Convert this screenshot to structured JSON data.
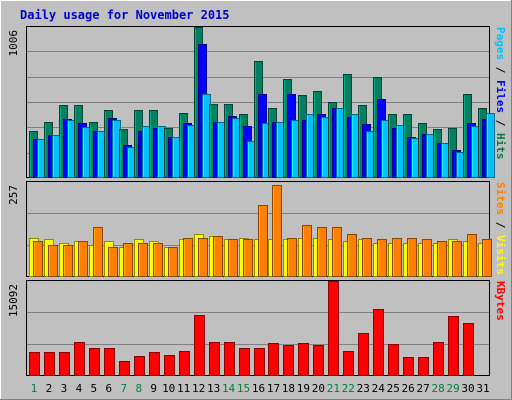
{
  "chart_data": {
    "type": "bar",
    "title": "Daily usage for November 2015",
    "categories": [
      "1",
      "2",
      "3",
      "4",
      "5",
      "6",
      "7",
      "8",
      "9",
      "10",
      "11",
      "12",
      "13",
      "14",
      "15",
      "16",
      "17",
      "18",
      "19",
      "20",
      "21",
      "22",
      "23",
      "24",
      "25",
      "26",
      "27",
      "28",
      "29",
      "30",
      "31"
    ],
    "weekend_days": [
      "1",
      "7",
      "8",
      "14",
      "15",
      "21",
      "22",
      "28",
      "29"
    ],
    "panels": [
      {
        "id": "hits-files-pages",
        "ymax": 1006,
        "ymax_label": "1006",
        "side_label": [
          {
            "text": "Pages",
            "color": "#00c0ff"
          },
          {
            "text": " / ",
            "color": "#000000"
          },
          {
            "text": "Files",
            "color": "#0000ff"
          },
          {
            "text": " / ",
            "color": "#000000"
          },
          {
            "text": "Hits",
            "color": "#008040"
          }
        ],
        "series": [
          {
            "name": "Hits",
            "color": "#008060",
            "values": [
              310,
              370,
              480,
              480,
              370,
              450,
              325,
              450,
              450,
              330,
              430,
              1006,
              490,
              490,
              420,
              780,
              460,
              660,
              550,
              580,
              500,
              690,
              480,
              670,
              420,
              420,
              360,
              320,
              330,
              560,
              460
            ]
          },
          {
            "name": "Files",
            "color": "#0000ff",
            "values": [
              255,
              280,
              390,
              365,
              310,
              395,
              215,
              310,
              330,
              270,
              360,
              890,
              370,
              410,
              340,
              560,
              370,
              555,
              380,
              420,
              460,
              400,
              355,
              520,
              330,
              270,
              290,
              230,
              180,
              360,
              390
            ]
          },
          {
            "name": "Pages",
            "color": "#00c0ff",
            "values": [
              255,
              280,
              385,
              335,
              310,
              380,
              200,
              345,
              345,
              270,
              350,
              560,
              370,
              395,
              240,
              360,
              370,
              380,
              420,
              400,
              460,
              420,
              310,
              380,
              350,
              260,
              290,
              230,
              170,
              345,
              430
            ]
          }
        ]
      },
      {
        "id": "visits-sites",
        "ymax": 257,
        "ymax_label": "257",
        "side_label": [
          {
            "text": "Sites",
            "color": "#ff8000"
          },
          {
            "text": " / ",
            "color": "#000000"
          },
          {
            "text": "Visits",
            "color": "#ffff00"
          }
        ],
        "series": [
          {
            "name": "Visits",
            "color": "#ffff00",
            "values": [
              105,
              100,
              90,
              95,
              85,
              95,
              80,
              100,
              95,
              80,
              100,
              115,
              110,
              100,
              105,
              100,
              100,
              100,
              105,
              105,
              100,
              95,
              100,
              90,
              90,
              90,
              90,
              90,
              100,
              95,
              90
            ]
          },
          {
            "name": "Sites",
            "color": "#ff8000",
            "values": [
              95,
              85,
              85,
              95,
              135,
              80,
              90,
              90,
              90,
              80,
              105,
              105,
              110,
              100,
              100,
              195,
              250,
              105,
              140,
              135,
              135,
              115,
              105,
              100,
              105,
              105,
              100,
              95,
              95,
              115,
              100
            ]
          }
        ]
      },
      {
        "id": "kbytes",
        "ymax": 15092,
        "ymax_label": "15092",
        "side_label": [
          {
            "text": "KBytes",
            "color": "#ff0000"
          }
        ],
        "series": [
          {
            "name": "KBytes",
            "color": "#ff0000",
            "values": [
              3620,
              3620,
              3730,
              5240,
              4350,
              4350,
              2240,
              3120,
              3670,
              3240,
              3840,
              9600,
              5240,
              5320,
              4380,
              4290,
              5130,
              4870,
              5130,
              4820,
              15092,
              3890,
              6680,
              10660,
              4900,
              2920,
              2940,
              5240,
              9400,
              8340,
              0
            ]
          }
        ]
      }
    ]
  }
}
